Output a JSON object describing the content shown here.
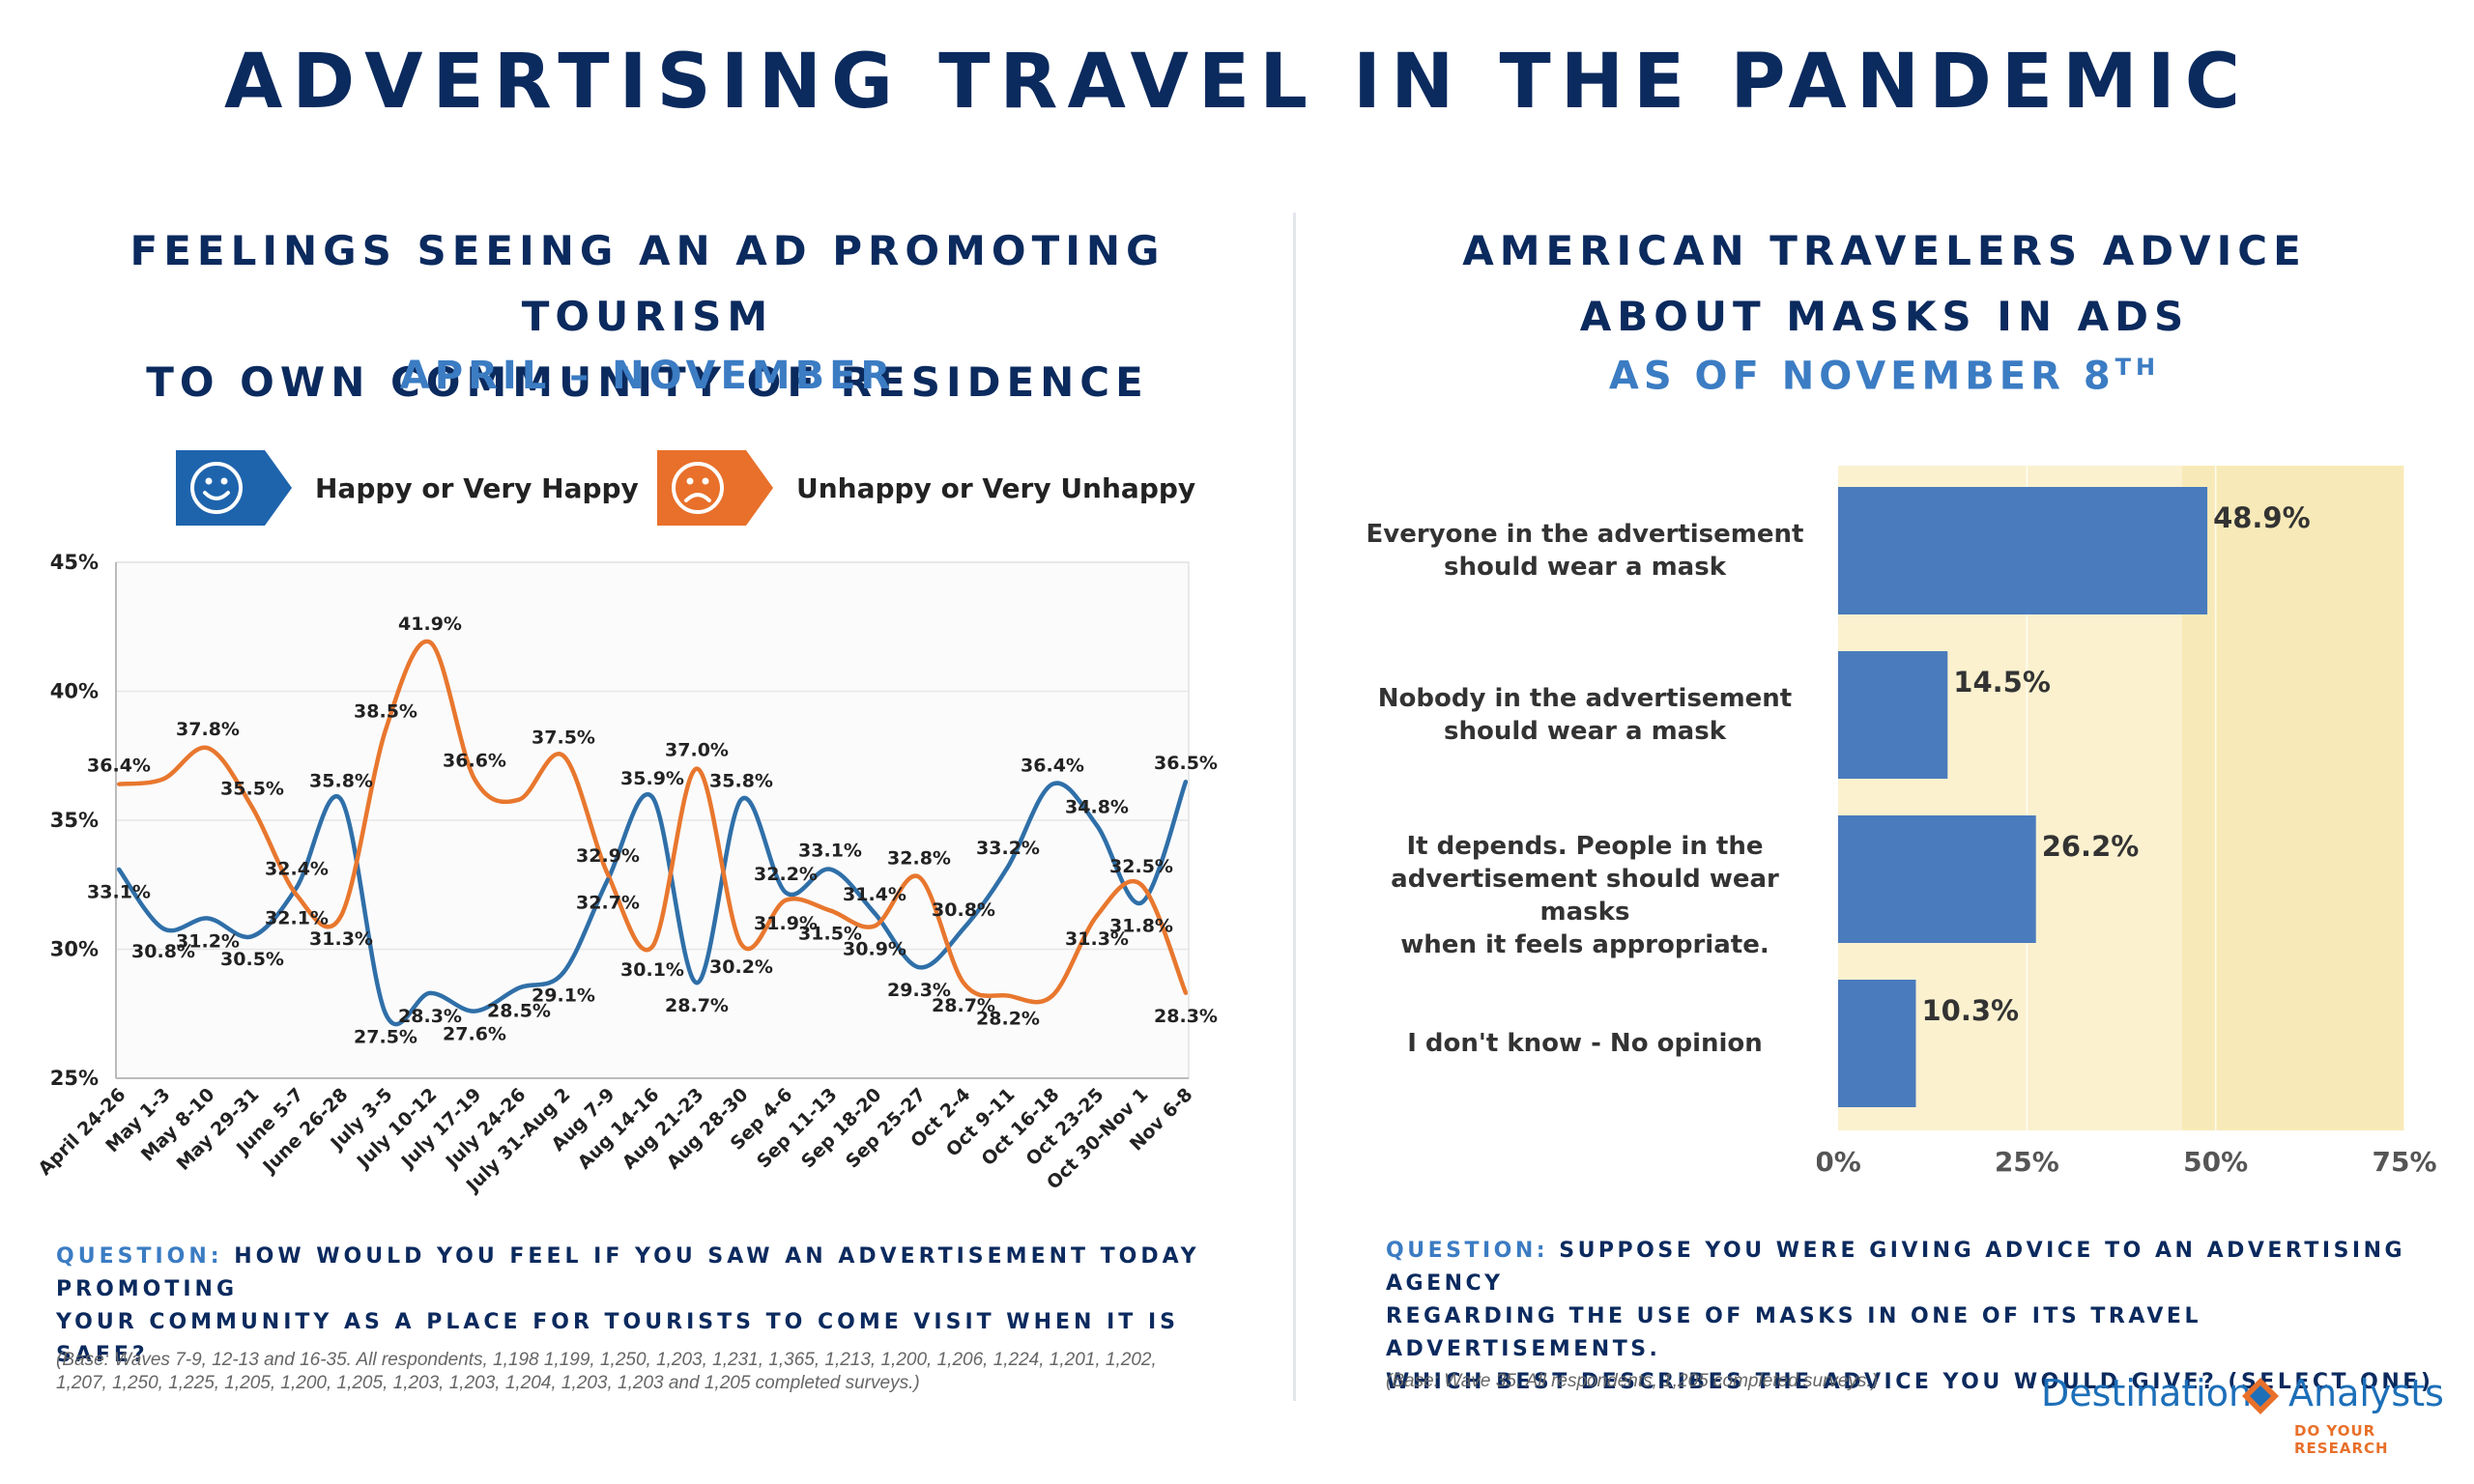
{
  "title": "ADVERTISING TRAVEL IN THE PANDEMIC",
  "left_panel": {
    "title_line1": "FEELINGS SEEING AN AD PROMOTING TOURISM",
    "title_line2": "TO OWN COMMUNITY OF RESIDENCE",
    "subtitle": "APRIL – NOVEMBER",
    "question_label": "QUESTION:",
    "question_line1": "HOW WOULD YOU FEEL IF YOU SAW AN ADVERTISEMENT TODAY PROMOTING",
    "question_line2": "YOUR COMMUNITY AS A PLACE FOR TOURISTS TO COME VISIT WHEN IT IS SAFE?",
    "base_line1": "(Base: Waves 7-9, 12-13 and 16-35. All respondents, 1,198 1,199, 1,250, 1,203, 1,231, 1,365, 1,213, 1,200, 1,206, 1,224, 1,201, 1,202,",
    "base_line2": "1,207, 1,250, 1,225, 1,205, 1,200, 1,205, 1,203, 1,203, 1,204, 1,203, 1,203 and 1,205 completed surveys.)"
  },
  "right_panel": {
    "title_line1": "AMERICAN TRAVELERS ADVICE",
    "title_line2": "ABOUT MASKS IN ADS",
    "subtitle": "AS OF NOVEMBER 8",
    "subtitle_sup": "TH",
    "question_label": "QUESTION:",
    "question_line1": "SUPPOSE YOU WERE GIVING ADVICE TO AN ADVERTISING AGENCY",
    "question_line2": "REGARDING THE USE OF MASKS IN ONE OF ITS TRAVEL ADVERTISEMENTS.",
    "question_line3": "WHICH BEST DESCRIBES THE ADVICE YOU WOULD GIVE? (SELECT ONE)",
    "base_note": "(Base: Wave 35. All respondents, 1,205 completed surveys.)"
  },
  "logo": {
    "name_part1": "Destination",
    "name_part2": "Analysts",
    "tagline": "DO YOUR RESEARCH"
  },
  "colors": {
    "navy": "#0b2a5e",
    "accent_blue": "#3b7cc3",
    "happy": "#2f6fa8",
    "unhappy": "#e8772e",
    "bar": "#4a7bbd"
  },
  "chart_data": [
    {
      "type": "line",
      "legend": {
        "placement": "top",
        "happy_icon": "smiley-face-icon",
        "unhappy_icon": "frowning-face-icon"
      },
      "ylim": [
        25,
        45
      ],
      "yticks": [
        "25%",
        "30%",
        "35%",
        "40%",
        "45%"
      ],
      "grid": true,
      "categories": [
        "April 24-26",
        "May 1-3",
        "May 8-10",
        "May 29-31",
        "June 5-7",
        "June 26-28",
        "July 3-5",
        "July 10-12",
        "July 17-19",
        "July 24-26",
        "July 31-Aug 2",
        "Aug 7-9",
        "Aug 14-16",
        "Aug 21-23",
        "Aug 28-30",
        "Sep 4-6",
        "Sep 11-13",
        "Sep 18-20",
        "Sep 25-27",
        "Oct 2-4",
        "Oct 9-11",
        "Oct 16-18",
        "Oct 23-25",
        "Oct 30-Nov 1",
        "Nov 6-8"
      ],
      "series": [
        {
          "name": "Happy or Very Happy",
          "values": [
            33.1,
            30.8,
            31.2,
            30.5,
            32.4,
            35.8,
            27.5,
            28.3,
            27.6,
            28.5,
            29.1,
            32.7,
            35.9,
            28.7,
            35.8,
            32.2,
            33.1,
            31.4,
            29.3,
            30.8,
            33.2,
            36.4,
            34.8,
            31.8,
            36.5
          ],
          "labels": [
            "33.1%",
            "30.8%",
            "31.2%",
            "30.5%",
            "32.4%",
            "35.8%",
            "27.5%",
            "28.3%",
            "27.6%",
            "28.5%",
            "29.1%",
            "32.7%",
            "35.9%",
            "28.7%",
            "35.8%",
            "32.2%",
            "33.1%",
            "31.4%",
            "29.3%",
            "30.8%",
            "33.2%",
            "36.4%",
            "34.8%",
            "31.8%",
            "36.5%"
          ]
        },
        {
          "name": "Unhappy or Very Unhappy",
          "values": [
            36.4,
            36.6,
            37.8,
            35.5,
            32.1,
            31.3,
            38.5,
            41.9,
            36.6,
            35.8,
            37.5,
            32.9,
            30.1,
            37.0,
            30.2,
            31.9,
            31.5,
            30.9,
            32.8,
            28.7,
            28.2,
            28.2,
            31.3,
            32.5,
            28.3
          ],
          "labels": [
            "36.4%",
            "",
            "37.8%",
            "35.5%",
            "32.1%",
            "31.3%",
            "38.5%",
            "41.9%",
            "36.6%",
            "",
            "37.5%",
            "32.9%",
            "30.1%",
            "37.0%",
            "30.2%",
            "31.9%",
            "31.5%",
            "30.9%",
            "32.8%",
            "28.7%",
            "28.2%",
            "",
            "31.3%",
            "32.5%",
            "28.3%"
          ]
        }
      ]
    },
    {
      "type": "bar",
      "orientation": "horizontal",
      "categories": [
        [
          "Everyone in the advertisement",
          "should wear a mask"
        ],
        [
          "Nobody in the advertisement",
          "should wear a mask"
        ],
        [
          "It depends. People in the",
          "advertisement should wear masks",
          "when it feels appropriate."
        ],
        [
          "I don't know - No opinion"
        ]
      ],
      "values": [
        48.9,
        14.5,
        26.2,
        10.3
      ],
      "labels": [
        "48.9%",
        "14.5%",
        "26.2%",
        "10.3%"
      ],
      "xlim": [
        0,
        75
      ],
      "xticks": [
        "0%",
        "25%",
        "50%",
        "75%"
      ]
    }
  ]
}
